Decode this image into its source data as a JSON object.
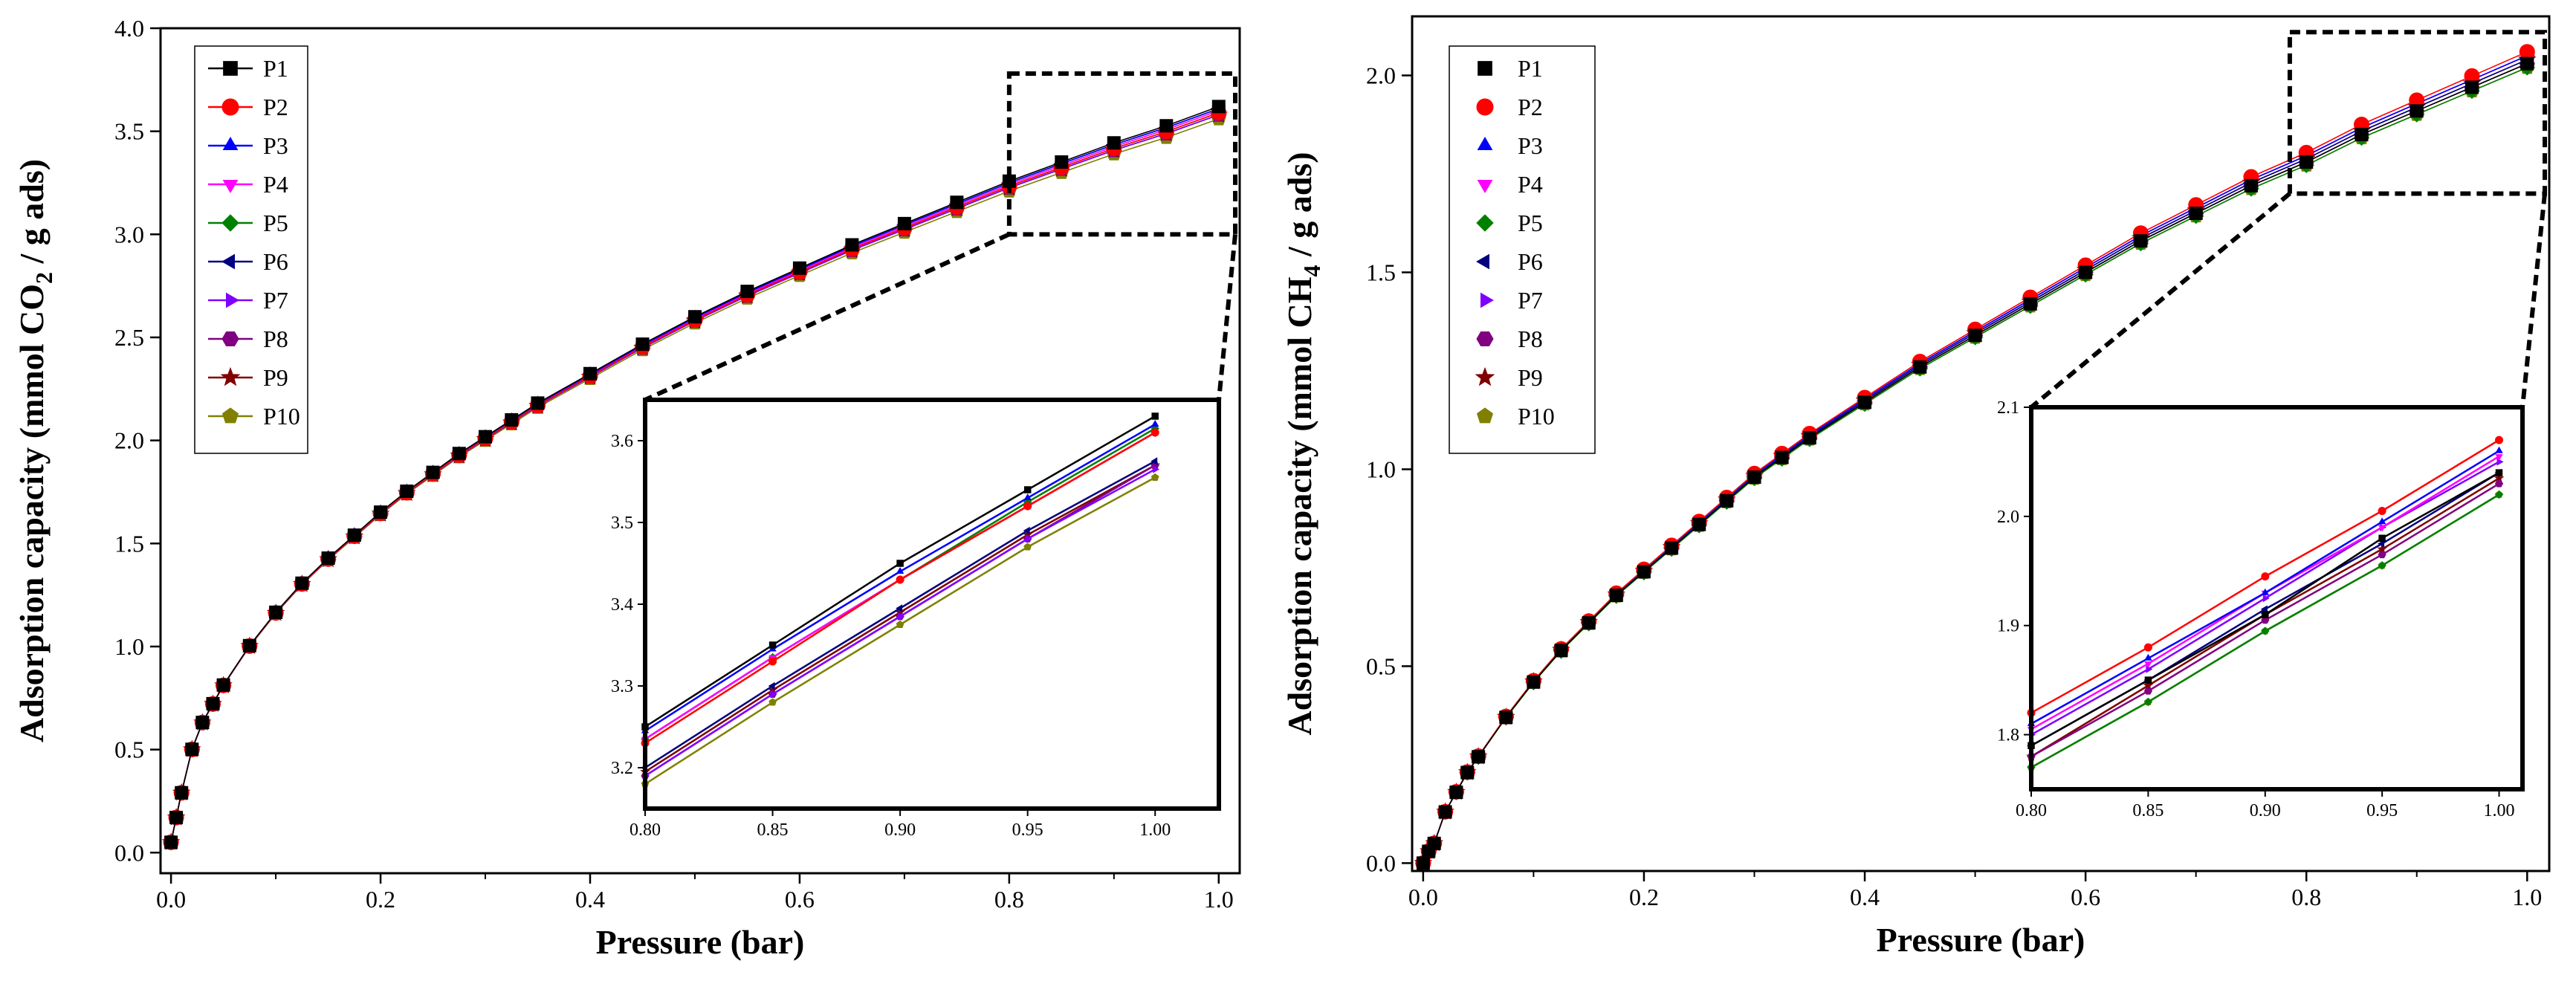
{
  "series_labels": [
    "P1",
    "P2",
    "P3",
    "P4",
    "P5",
    "P6",
    "P7",
    "P8",
    "P9",
    "P10"
  ],
  "chart_data": [
    {
      "type": "line",
      "panel": "left",
      "xlabel": "Pressure (bar)",
      "ylabel_parts": [
        "Adsorption capacity (mmol CO",
        "2",
        " / g ads)"
      ],
      "xlim": [
        -0.01,
        1.02
      ],
      "ylim": [
        -0.1,
        4.0
      ],
      "xticks": [
        0.0,
        0.2,
        0.4,
        0.6,
        0.8,
        1.0
      ],
      "xtick_labels": [
        "0.0",
        "0.2",
        "0.4",
        "0.6",
        "0.8",
        "1.0"
      ],
      "yticks": [
        0.0,
        0.5,
        1.0,
        1.5,
        2.0,
        2.5,
        3.0,
        3.5,
        4.0
      ],
      "ytick_labels": [
        "0.0",
        "0.5",
        "1.0",
        "1.5",
        "2.0",
        "2.5",
        "3.0",
        "3.5",
        "4.0"
      ],
      "x": [
        0.0,
        0.005,
        0.01,
        0.02,
        0.03,
        0.04,
        0.05,
        0.075,
        0.1,
        0.125,
        0.15,
        0.175,
        0.2,
        0.225,
        0.25,
        0.275,
        0.3,
        0.325,
        0.35,
        0.4,
        0.45,
        0.5,
        0.55,
        0.6,
        0.65,
        0.7,
        0.75,
        0.8,
        0.85,
        0.9,
        0.95,
        1.0
      ],
      "y": [
        0.05,
        0.17,
        0.29,
        0.5,
        0.63,
        0.72,
        0.81,
        1.0,
        1.16,
        1.3,
        1.42,
        1.53,
        1.64,
        1.74,
        1.83,
        1.92,
        2.0,
        2.08,
        2.16,
        2.3,
        2.44,
        2.57,
        2.69,
        2.8,
        2.91,
        3.01,
        3.11,
        3.21,
        3.3,
        3.39,
        3.47,
        3.56
      ],
      "series_offsets": [
        0.06,
        0.03,
        0.05,
        0.04,
        0.03,
        0.05,
        0.02,
        0.02,
        0.02,
        0.0
      ],
      "highlight_box": {
        "x": [
          0.8,
          1.02
        ],
        "y": [
          3.0,
          3.78
        ]
      },
      "inset": {
        "xlim": [
          0.8,
          1.025
        ],
        "ylim": [
          3.15,
          3.65
        ],
        "xticks": [
          0.8,
          0.85,
          0.9,
          0.95,
          1.0
        ],
        "xtick_labels": [
          "0.80",
          "0.85",
          "0.90",
          "0.95",
          "1.00"
        ],
        "yticks": [
          3.2,
          3.3,
          3.4,
          3.5,
          3.6
        ],
        "ytick_labels": [
          "3.2",
          "3.3",
          "3.4",
          "3.5",
          "3.6"
        ],
        "x": [
          0.8,
          0.85,
          0.9,
          0.95,
          1.0
        ],
        "series": [
          {
            "name": "P1",
            "values": [
              3.25,
              3.35,
              3.45,
              3.54,
              3.63
            ]
          },
          {
            "name": "P2",
            "values": [
              3.23,
              3.33,
              3.43,
              3.52,
              3.61
            ]
          },
          {
            "name": "P3",
            "values": [
              3.245,
              3.345,
              3.44,
              3.53,
              3.62
            ]
          },
          {
            "name": "P4",
            "values": [
              3.235,
              3.335,
              3.43,
              3.52,
              3.61
            ]
          },
          {
            "name": "P5",
            "values": [
              3.235,
              3.335,
              3.43,
              3.525,
              3.615
            ]
          },
          {
            "name": "P6",
            "values": [
              3.2,
              3.3,
              3.395,
              3.49,
              3.575
            ]
          },
          {
            "name": "P7",
            "values": [
              3.19,
              3.29,
              3.385,
              3.48,
              3.565
            ]
          },
          {
            "name": "P8",
            "values": [
              3.19,
              3.29,
              3.385,
              3.48,
              3.57
            ]
          },
          {
            "name": "P9",
            "values": [
              3.195,
              3.295,
              3.39,
              3.485,
              3.57
            ]
          },
          {
            "name": "P10",
            "values": [
              3.18,
              3.28,
              3.375,
              3.47,
              3.555
            ]
          }
        ]
      }
    },
    {
      "type": "line",
      "panel": "right",
      "xlabel": "Pressure (bar)",
      "ylabel_parts": [
        "Adsorption capacity (mmol CH",
        "4",
        " / g ads)"
      ],
      "xlim": [
        -0.01,
        1.02
      ],
      "ylim": [
        -0.02,
        2.15
      ],
      "xticks": [
        0.0,
        0.2,
        0.4,
        0.6,
        0.8,
        1.0
      ],
      "xtick_labels": [
        "0.0",
        "0.2",
        "0.4",
        "0.6",
        "0.8",
        "1.0"
      ],
      "yticks": [
        0.0,
        0.5,
        1.0,
        1.5,
        2.0
      ],
      "ytick_labels": [
        "0.0",
        "0.5",
        "1.0",
        "1.5",
        "2.0"
      ],
      "x": [
        0.0,
        0.005,
        0.01,
        0.02,
        0.03,
        0.04,
        0.05,
        0.075,
        0.1,
        0.125,
        0.15,
        0.175,
        0.2,
        0.225,
        0.25,
        0.275,
        0.3,
        0.325,
        0.35,
        0.4,
        0.45,
        0.5,
        0.55,
        0.6,
        0.65,
        0.7,
        0.75,
        0.8,
        0.85,
        0.9,
        0.95,
        1.0
      ],
      "y": [
        0.0,
        0.03,
        0.05,
        0.13,
        0.18,
        0.23,
        0.27,
        0.37,
        0.46,
        0.54,
        0.61,
        0.68,
        0.74,
        0.8,
        0.86,
        0.92,
        0.98,
        1.03,
        1.08,
        1.17,
        1.26,
        1.34,
        1.42,
        1.5,
        1.58,
        1.65,
        1.72,
        1.78,
        1.85,
        1.91,
        1.97,
        2.03
      ],
      "series_offsets": [
        0.0,
        0.03,
        0.02,
        0.02,
        -0.01,
        0.01,
        0.02,
        0.0,
        0.01,
        -0.01
      ],
      "highlight_box": {
        "x": [
          0.785,
          1.02
        ],
        "y": [
          1.7,
          2.11
        ]
      },
      "inset": {
        "xlim": [
          0.8,
          1.01
        ],
        "ylim": [
          1.75,
          2.1
        ],
        "xticks": [
          0.8,
          0.85,
          0.9,
          0.95,
          1.0
        ],
        "xtick_labels": [
          "0.80",
          "0.85",
          "0.90",
          "0.95",
          "1.00"
        ],
        "yticks": [
          1.8,
          1.9,
          2.0,
          2.1
        ],
        "ytick_labels": [
          "1.8",
          "1.9",
          "2.0",
          "2.1"
        ],
        "x": [
          0.8,
          0.85,
          0.9,
          0.95,
          1.0
        ],
        "series": [
          {
            "name": "P1",
            "values": [
              1.79,
              1.85,
              1.91,
              1.98,
              2.04
            ]
          },
          {
            "name": "P2",
            "values": [
              1.82,
              1.88,
              1.945,
              2.005,
              2.07
            ]
          },
          {
            "name": "P3",
            "values": [
              1.81,
              1.87,
              1.93,
              1.995,
              2.06
            ]
          },
          {
            "name": "P4",
            "values": [
              1.805,
              1.865,
              1.93,
              1.99,
              2.055
            ]
          },
          {
            "name": "P5",
            "values": [
              1.77,
              1.83,
              1.895,
              1.955,
              2.02
            ]
          },
          {
            "name": "P6",
            "values": [
              1.79,
              1.85,
              1.915,
              1.975,
              2.04
            ]
          },
          {
            "name": "P7",
            "values": [
              1.8,
              1.86,
              1.925,
              1.99,
              2.05
            ]
          },
          {
            "name": "P8",
            "values": [
              1.78,
              1.84,
              1.905,
              1.965,
              2.03
            ]
          },
          {
            "name": "P9",
            "values": [
              1.78,
              1.845,
              1.91,
              1.97,
              2.035
            ]
          },
          {
            "name": "P10",
            "values": [
              1.77,
              1.83,
              1.895,
              1.955,
              2.02
            ]
          }
        ]
      }
    }
  ],
  "series_colors": [
    "#000000",
    "#ff0000",
    "#0000ff",
    "#ff00ff",
    "#008000",
    "#000080",
    "#8000ff",
    "#800080",
    "#800000",
    "#808000"
  ],
  "series_markers": [
    "square",
    "circle",
    "triangle-up",
    "triangle-down",
    "diamond",
    "triangle-left",
    "triangle-right",
    "hexagon",
    "star",
    "pentagon"
  ]
}
